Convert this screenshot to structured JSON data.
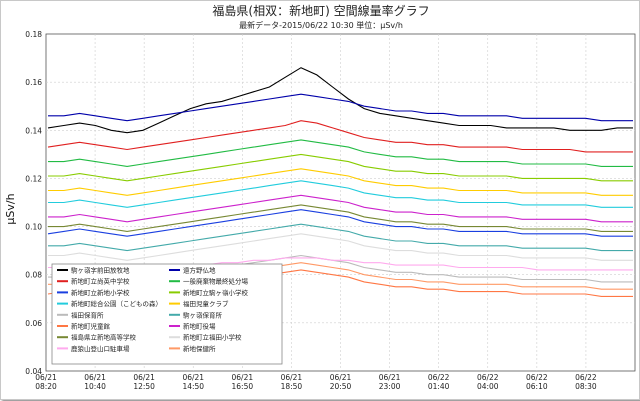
{
  "chart_data": {
    "type": "line",
    "title": "福島県(相双：新地町) 空間線量率グラフ",
    "subtitle": "最新データ-2015/06/22 10:30 単位：μSv/h",
    "ylabel": "μSv/h",
    "xlabel": "",
    "ylim": [
      0.04,
      0.18
    ],
    "y_ticks": [
      "0.04",
      "0.06",
      "0.08",
      "0.10",
      "0.12",
      "0.14",
      "0.16",
      "0.18"
    ],
    "x_ticks": [
      {
        "date": "06/21",
        "time": "08:20"
      },
      {
        "date": "06/21",
        "time": "10:40"
      },
      {
        "date": "06/21",
        "time": "12:50"
      },
      {
        "date": "06/21",
        "time": "14:50"
      },
      {
        "date": "06/21",
        "time": "16:50"
      },
      {
        "date": "06/21",
        "time": "18:50"
      },
      {
        "date": "06/21",
        "time": "20:50"
      },
      {
        "date": "06/21",
        "time": "23:00"
      },
      {
        "date": "06/22",
        "time": "01:40"
      },
      {
        "date": "06/22",
        "time": "04:00"
      },
      {
        "date": "06/22",
        "time": "06:10"
      },
      {
        "date": "06/22",
        "time": "08:30"
      }
    ],
    "grid": true,
    "legend_position": "bottom-left",
    "series": [
      {
        "name": "駒ヶ嶺字前田放牧地",
        "color": "#000000",
        "values": [
          0.141,
          0.142,
          0.143,
          0.142,
          0.14,
          0.139,
          0.14,
          0.143,
          0.146,
          0.149,
          0.151,
          0.152,
          0.154,
          0.156,
          0.158,
          0.162,
          0.166,
          0.163,
          0.158,
          0.153,
          0.149,
          0.147,
          0.146,
          0.145,
          0.144,
          0.143,
          0.142,
          0.142,
          0.142,
          0.141,
          0.141,
          0.141,
          0.141,
          0.14,
          0.14,
          0.14,
          0.141,
          0.141
        ]
      },
      {
        "name": "新地町立尚英中学校",
        "color": "#e02020",
        "values": [
          0.133,
          0.134,
          0.135,
          0.134,
          0.133,
          0.132,
          0.133,
          0.134,
          0.135,
          0.136,
          0.137,
          0.138,
          0.139,
          0.14,
          0.141,
          0.142,
          0.144,
          0.143,
          0.141,
          0.139,
          0.137,
          0.136,
          0.135,
          0.135,
          0.134,
          0.134,
          0.133,
          0.133,
          0.133,
          0.133,
          0.132,
          0.132,
          0.132,
          0.132,
          0.131,
          0.131,
          0.131,
          0.131
        ]
      },
      {
        "name": "新地町立新地小学校",
        "color": "#1a3fe0",
        "values": [
          0.097,
          0.098,
          0.099,
          0.098,
          0.097,
          0.096,
          0.097,
          0.098,
          0.099,
          0.1,
          0.101,
          0.102,
          0.103,
          0.104,
          0.105,
          0.106,
          0.107,
          0.106,
          0.105,
          0.104,
          0.102,
          0.101,
          0.1,
          0.1,
          0.099,
          0.099,
          0.098,
          0.098,
          0.098,
          0.098,
          0.097,
          0.097,
          0.097,
          0.097,
          0.097,
          0.096,
          0.096,
          0.096
        ]
      },
      {
        "name": "新地町総合公園（こどもの森）",
        "color": "#22ccdd",
        "values": [
          0.11,
          0.11,
          0.111,
          0.11,
          0.109,
          0.108,
          0.109,
          0.11,
          0.111,
          0.112,
          0.113,
          0.114,
          0.115,
          0.116,
          0.117,
          0.118,
          0.119,
          0.118,
          0.117,
          0.116,
          0.114,
          0.113,
          0.112,
          0.112,
          0.111,
          0.111,
          0.11,
          0.11,
          0.11,
          0.11,
          0.109,
          0.109,
          0.109,
          0.109,
          0.109,
          0.108,
          0.108,
          0.108
        ]
      },
      {
        "name": "福田保育所",
        "color": "#bbbbbb",
        "values": [
          0.079,
          0.079,
          0.08,
          0.079,
          0.078,
          0.077,
          0.078,
          0.079,
          0.08,
          0.081,
          0.082,
          0.083,
          0.084,
          0.085,
          0.086,
          0.087,
          0.088,
          0.087,
          0.086,
          0.085,
          0.083,
          0.082,
          0.081,
          0.081,
          0.08,
          0.08,
          0.079,
          0.079,
          0.079,
          0.079,
          0.078,
          0.078,
          0.078,
          0.078,
          0.078,
          0.077,
          0.077,
          0.077
        ]
      },
      {
        "name": "新地町児童館",
        "color": "#ff7744",
        "values": [
          0.072,
          0.073,
          0.074,
          0.073,
          0.072,
          0.071,
          0.072,
          0.073,
          0.074,
          0.075,
          0.076,
          0.077,
          0.078,
          0.079,
          0.08,
          0.081,
          0.082,
          0.081,
          0.08,
          0.079,
          0.077,
          0.076,
          0.075,
          0.075,
          0.074,
          0.074,
          0.073,
          0.073,
          0.073,
          0.073,
          0.072,
          0.072,
          0.072,
          0.072,
          0.072,
          0.071,
          0.071,
          0.071
        ]
      },
      {
        "name": "福島県立新地高等学校",
        "color": "#778833",
        "values": [
          0.1,
          0.1,
          0.101,
          0.1,
          0.099,
          0.098,
          0.099,
          0.1,
          0.101,
          0.102,
          0.103,
          0.104,
          0.105,
          0.106,
          0.107,
          0.108,
          0.109,
          0.108,
          0.107,
          0.106,
          0.104,
          0.103,
          0.102,
          0.102,
          0.101,
          0.101,
          0.1,
          0.1,
          0.1,
          0.1,
          0.099,
          0.099,
          0.099,
          0.099,
          0.099,
          0.098,
          0.098,
          0.098
        ]
      },
      {
        "name": "鹿狼山登山口駐車場",
        "color": "#ffaaee",
        "values": [
          0.083,
          0.083,
          0.084,
          0.083,
          0.082,
          0.081,
          0.082,
          0.083,
          0.083,
          0.084,
          0.084,
          0.085,
          0.085,
          0.086,
          0.086,
          0.087,
          0.087,
          0.087,
          0.086,
          0.086,
          0.085,
          0.085,
          0.084,
          0.084,
          0.084,
          0.084,
          0.083,
          0.083,
          0.083,
          0.083,
          0.083,
          0.082,
          0.082,
          0.082,
          0.082,
          0.082,
          0.082,
          0.082
        ]
      },
      {
        "name": "遠方野仏地",
        "color": "#0000aa",
        "values": [
          0.146,
          0.146,
          0.147,
          0.146,
          0.145,
          0.144,
          0.145,
          0.146,
          0.147,
          0.148,
          0.149,
          0.15,
          0.151,
          0.152,
          0.153,
          0.154,
          0.155,
          0.154,
          0.153,
          0.152,
          0.15,
          0.149,
          0.148,
          0.148,
          0.147,
          0.147,
          0.146,
          0.146,
          0.146,
          0.146,
          0.145,
          0.145,
          0.145,
          0.145,
          0.145,
          0.144,
          0.144,
          0.144
        ]
      },
      {
        "name": "一般廃棄物最終処分場",
        "color": "#22bb44",
        "values": [
          0.127,
          0.127,
          0.128,
          0.127,
          0.126,
          0.125,
          0.126,
          0.127,
          0.128,
          0.129,
          0.13,
          0.131,
          0.132,
          0.133,
          0.134,
          0.135,
          0.136,
          0.135,
          0.134,
          0.133,
          0.131,
          0.13,
          0.129,
          0.129,
          0.128,
          0.128,
          0.127,
          0.127,
          0.127,
          0.127,
          0.126,
          0.126,
          0.126,
          0.126,
          0.126,
          0.125,
          0.125,
          0.125
        ]
      },
      {
        "name": "新地町立駒ヶ嶺小学校",
        "color": "#88cc00",
        "values": [
          0.121,
          0.121,
          0.122,
          0.121,
          0.12,
          0.119,
          0.12,
          0.121,
          0.122,
          0.123,
          0.124,
          0.125,
          0.126,
          0.127,
          0.128,
          0.129,
          0.13,
          0.129,
          0.128,
          0.127,
          0.125,
          0.124,
          0.123,
          0.123,
          0.122,
          0.122,
          0.121,
          0.121,
          0.121,
          0.121,
          0.12,
          0.12,
          0.12,
          0.12,
          0.12,
          0.119,
          0.119,
          0.119
        ]
      },
      {
        "name": "福田児童クラブ",
        "color": "#ffcc00",
        "values": [
          0.115,
          0.115,
          0.116,
          0.115,
          0.114,
          0.113,
          0.114,
          0.115,
          0.116,
          0.117,
          0.118,
          0.119,
          0.12,
          0.121,
          0.122,
          0.123,
          0.124,
          0.123,
          0.122,
          0.121,
          0.119,
          0.118,
          0.117,
          0.117,
          0.116,
          0.116,
          0.115,
          0.115,
          0.115,
          0.115,
          0.114,
          0.114,
          0.114,
          0.114,
          0.114,
          0.113,
          0.113,
          0.113
        ]
      },
      {
        "name": "駒ヶ嶺保育所",
        "color": "#44aaaa",
        "values": [
          0.092,
          0.092,
          0.093,
          0.092,
          0.091,
          0.09,
          0.091,
          0.092,
          0.093,
          0.094,
          0.095,
          0.096,
          0.097,
          0.098,
          0.099,
          0.1,
          0.101,
          0.1,
          0.099,
          0.098,
          0.096,
          0.095,
          0.094,
          0.094,
          0.093,
          0.093,
          0.092,
          0.092,
          0.092,
          0.092,
          0.091,
          0.091,
          0.091,
          0.091,
          0.091,
          0.09,
          0.09,
          0.09
        ]
      },
      {
        "name": "新地町役場",
        "color": "#cc22cc",
        "values": [
          0.104,
          0.104,
          0.105,
          0.104,
          0.103,
          0.102,
          0.103,
          0.104,
          0.105,
          0.106,
          0.107,
          0.108,
          0.109,
          0.11,
          0.111,
          0.112,
          0.113,
          0.112,
          0.111,
          0.11,
          0.108,
          0.107,
          0.106,
          0.106,
          0.105,
          0.105,
          0.104,
          0.104,
          0.104,
          0.104,
          0.103,
          0.103,
          0.103,
          0.103,
          0.103,
          0.102,
          0.102,
          0.102
        ]
      },
      {
        "name": "新地町立福田小学校",
        "color": "#dddddd",
        "values": [
          0.088,
          0.088,
          0.089,
          0.088,
          0.087,
          0.086,
          0.087,
          0.088,
          0.089,
          0.09,
          0.091,
          0.092,
          0.093,
          0.094,
          0.095,
          0.096,
          0.097,
          0.096,
          0.095,
          0.094,
          0.092,
          0.091,
          0.09,
          0.09,
          0.089,
          0.089,
          0.088,
          0.088,
          0.088,
          0.088,
          0.087,
          0.087,
          0.087,
          0.087,
          0.087,
          0.086,
          0.086,
          0.086
        ]
      },
      {
        "name": "新地保健所",
        "color": "#ff9966",
        "values": [
          0.076,
          0.076,
          0.077,
          0.076,
          0.075,
          0.074,
          0.075,
          0.076,
          0.077,
          0.078,
          0.079,
          0.08,
          0.081,
          0.082,
          0.083,
          0.084,
          0.085,
          0.084,
          0.083,
          0.082,
          0.08,
          0.079,
          0.078,
          0.078,
          0.077,
          0.077,
          0.076,
          0.076,
          0.076,
          0.076,
          0.075,
          0.075,
          0.075,
          0.075,
          0.075,
          0.074,
          0.074,
          0.074
        ]
      }
    ]
  }
}
